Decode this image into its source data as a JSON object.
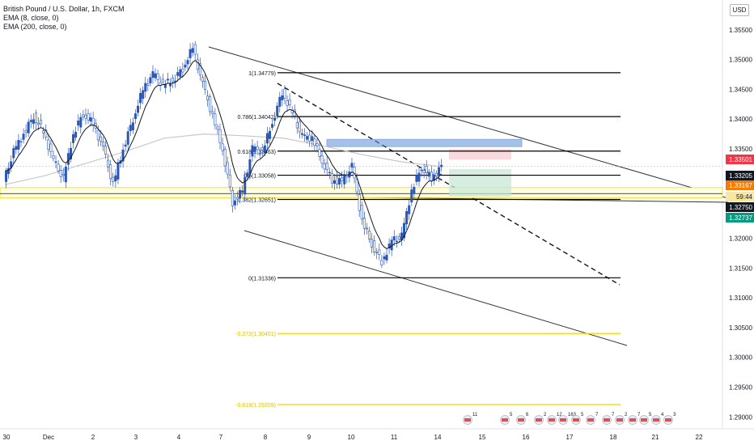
{
  "legend": {
    "symbol": "British Pound / U.S. Dollar, 1h, FXCM",
    "ema_fast": "EMA (8, close, 0)",
    "ema_slow": "EMA (200, close, 0)"
  },
  "currency_button": "USD",
  "colors": {
    "candle": "#2a56b8",
    "ema_fast": "#131722",
    "ema_slow": "#c8c8c8",
    "fib_main": "#000000",
    "fib_ext": "#f5d90a",
    "channel": "#333333",
    "zone": "#5b8fd6",
    "sl_zone": "#f7c9cc",
    "tp_zone": "#c4e6d6",
    "badge_red": "#f23645",
    "badge_orange": "#f57c00",
    "badge_black": "#131722",
    "badge_teal": "#089981",
    "badge_yellow": "#f9e79f"
  },
  "chart_data": {
    "type": "candlestick",
    "title": "British Pound / U.S. Dollar, 1h, FXCM",
    "x_ticks": [
      "30",
      "Dec",
      "2",
      "3",
      "4",
      "7",
      "8",
      "9",
      "10",
      "11",
      "14",
      "15",
      "16",
      "17",
      "18",
      "21",
      "22"
    ],
    "y_ticks": [
      "1.35500",
      "1.35000",
      "1.34500",
      "1.34000",
      "1.33500",
      "1.33000",
      "1.32500",
      "1.32000",
      "1.31500",
      "1.31000",
      "1.30500",
      "1.30000",
      "1.29500",
      "1.29000"
    ],
    "y_range": [
      1.288,
      1.36
    ],
    "grid": false,
    "price_path": [
      [
        0,
        1.3295
      ],
      [
        1,
        1.3345
      ],
      [
        2,
        1.3375
      ],
      [
        3,
        1.3405
      ],
      [
        4,
        1.338
      ],
      [
        5,
        1.333
      ],
      [
        6,
        1.33
      ],
      [
        7,
        1.3375
      ],
      [
        8,
        1.341
      ],
      [
        9,
        1.3392
      ],
      [
        10,
        1.335
      ],
      [
        11,
        1.329
      ],
      [
        12,
        1.335
      ],
      [
        13,
        1.34
      ],
      [
        14,
        1.345
      ],
      [
        15,
        1.3475
      ],
      [
        16,
        1.3458
      ],
      [
        17,
        1.3465
      ],
      [
        18,
        1.3485
      ],
      [
        19,
        1.352
      ],
      [
        20,
        1.3458
      ],
      [
        21,
        1.3405
      ],
      [
        22,
        1.335
      ],
      [
        23,
        1.326
      ],
      [
        24,
        1.328
      ],
      [
        25,
        1.335
      ],
      [
        26,
        1.3345
      ],
      [
        27,
        1.3395
      ],
      [
        28,
        1.3445
      ],
      [
        29,
        1.341
      ],
      [
        30,
        1.337
      ],
      [
        31,
        1.3368
      ],
      [
        32,
        1.333
      ],
      [
        33,
        1.3298
      ],
      [
        34,
        1.3295
      ],
      [
        35,
        1.332
      ],
      [
        36,
        1.323
      ],
      [
        37,
        1.319
      ],
      [
        38,
        1.316
      ],
      [
        39,
        1.3195
      ],
      [
        40,
        1.3203
      ],
      [
        41,
        1.328
      ],
      [
        42,
        1.332
      ],
      [
        43,
        1.33
      ],
      [
        44,
        1.332
      ]
    ],
    "ema_200": [
      [
        0,
        1.329
      ],
      [
        4,
        1.3305
      ],
      [
        8,
        1.3325
      ],
      [
        12,
        1.3345
      ],
      [
        16,
        1.3368
      ],
      [
        20,
        1.3375
      ],
      [
        24,
        1.3372
      ],
      [
        28,
        1.3368
      ],
      [
        32,
        1.3355
      ],
      [
        36,
        1.334
      ],
      [
        40,
        1.3328
      ],
      [
        44,
        1.332
      ]
    ],
    "fib_levels": [
      {
        "label": "1(1.34779)",
        "value": 1.34779
      },
      {
        "label": "0.786(1.34042)",
        "value": 1.34042
      },
      {
        "label": "0.618(1.33463)",
        "value": 1.33463
      },
      {
        "label": "0.5(1.33058)",
        "value": 1.33058
      },
      {
        "label": "0.382(1.32651)",
        "value": 1.32651
      },
      {
        "label": "0(1.31336)",
        "value": 1.31336
      },
      {
        "label": "-0.272(1.30401)",
        "value": 1.30401
      },
      {
        "label": "-0.618(1.29209)",
        "value": 1.29209
      }
    ],
    "zone": [
      1.3355,
      1.3362
    ],
    "sl_zone": [
      1.3332,
      1.335
    ],
    "tp_zone": [
      1.327,
      1.3316
    ],
    "horizontal_band": [
      1.3268,
      1.3285
    ],
    "price_labels": [
      {
        "text": "1.33501",
        "value": 1.33501,
        "style": "red"
      },
      {
        "text": "1.33205",
        "value": 1.33205,
        "style": "black"
      },
      {
        "text": "1.33167",
        "value": 1.33167,
        "style": "orange"
      },
      {
        "text": "59:44",
        "value": 1.3285,
        "style": "yellow"
      },
      {
        "text": "1.32750",
        "value": 1.3275,
        "style": "black"
      },
      {
        "text": "1.32737",
        "value": 1.32737,
        "style": "teal"
      }
    ],
    "events": [
      "11",
      "5",
      "6",
      "2",
      "12",
      "163",
      "5",
      "7",
      "7",
      "2",
      "7",
      "5",
      "4",
      "3"
    ]
  }
}
